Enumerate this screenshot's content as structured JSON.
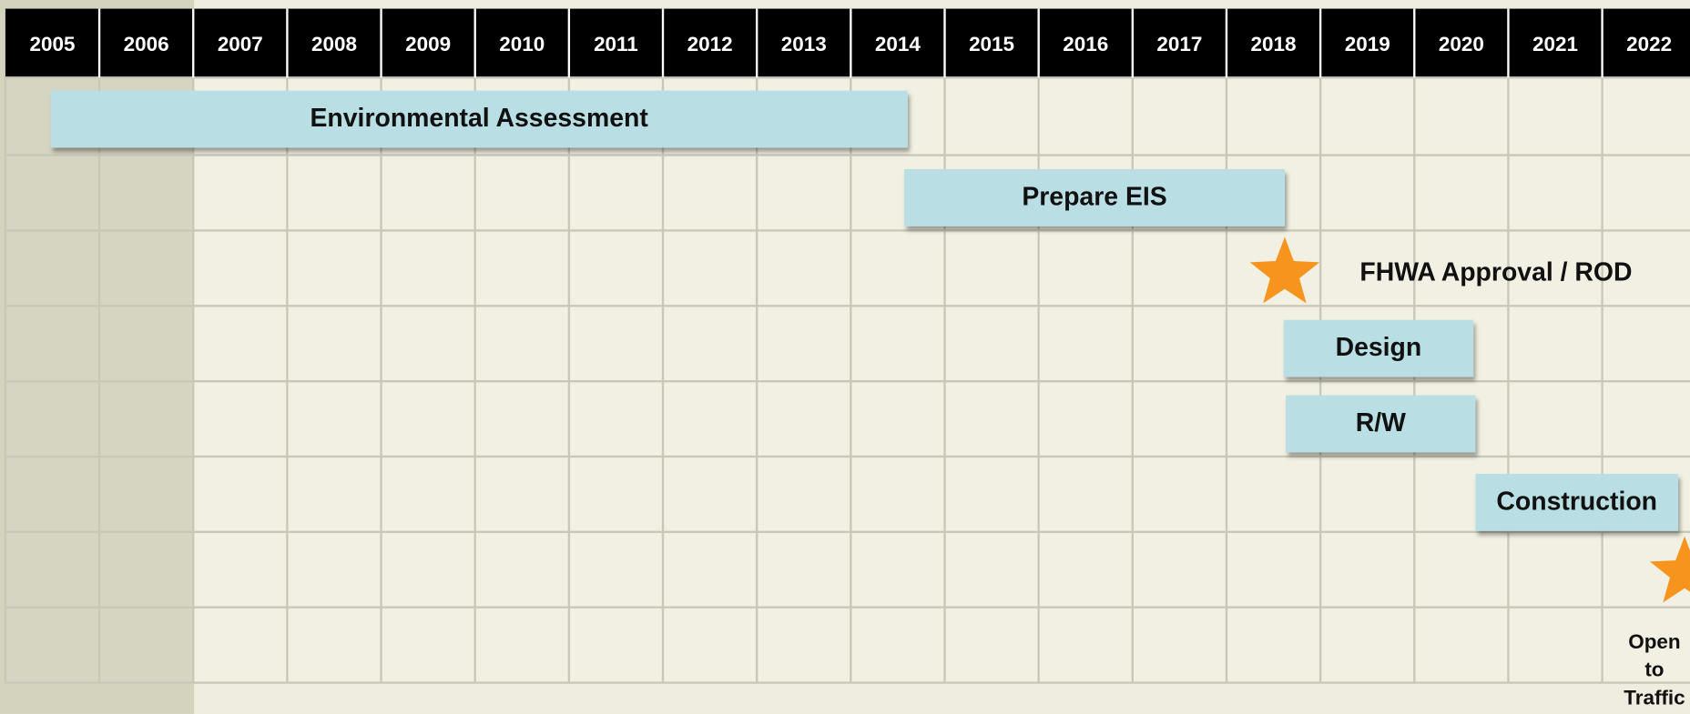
{
  "timeline": {
    "years": [
      "2005",
      "2006",
      "2007",
      "2008",
      "2009",
      "2010",
      "2011",
      "2012",
      "2013",
      "2014",
      "2015",
      "2016",
      "2017",
      "2018",
      "2019",
      "2020",
      "2021",
      "2022"
    ],
    "tasks": [
      {
        "label": "Environmental Assessment"
      },
      {
        "label": "Prepare EIS"
      },
      {
        "label": "Design"
      },
      {
        "label": "R/W"
      },
      {
        "label": "Construction"
      }
    ],
    "milestones": [
      {
        "label": "FHWA Approval / ROD"
      },
      {
        "label": "Open to Traffic"
      }
    ]
  }
}
